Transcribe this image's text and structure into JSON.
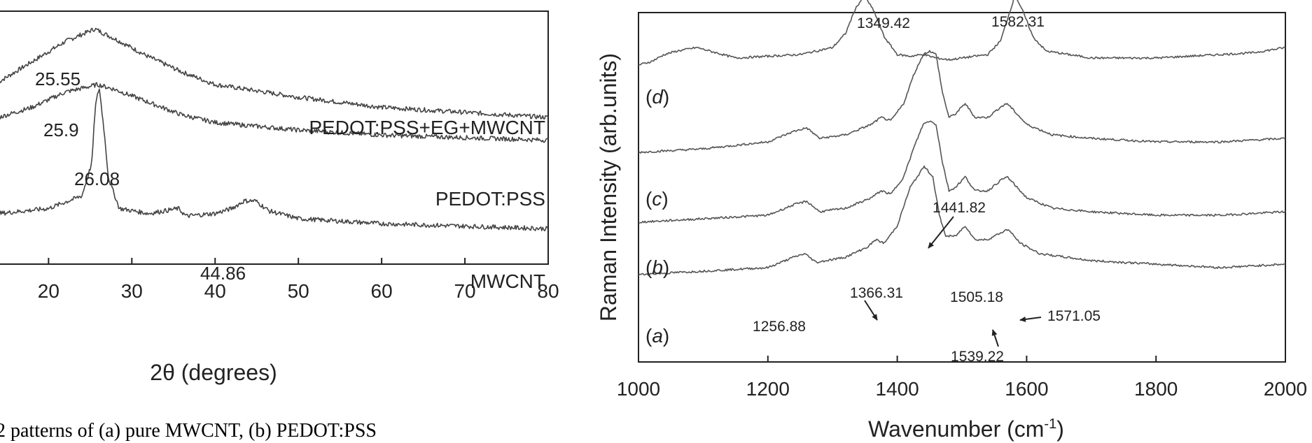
{
  "chart_data": [
    {
      "type": "line",
      "xlabel": "2θ (degrees)",
      "ylabel": "",
      "xlim": [
        14,
        80
      ],
      "x_ticks": [
        20,
        30,
        40,
        50,
        60,
        70,
        80
      ],
      "x_tick_labels": [
        "20",
        "30",
        "40",
        "50",
        "60",
        "70",
        "80"
      ],
      "grid": false,
      "series": [
        {
          "name": "PEDOT:PSS+EG+MWCNT",
          "color": "#444444",
          "x": [
            14,
            18,
            22,
            25.55,
            28,
            32,
            36,
            40,
            50,
            60,
            70,
            80
          ],
          "y": [
            0.72,
            0.8,
            0.88,
            0.93,
            0.89,
            0.82,
            0.76,
            0.71,
            0.66,
            0.62,
            0.6,
            0.58
          ],
          "peaks": [
            {
              "x": 25.55,
              "label": "25.55"
            }
          ]
        },
        {
          "name": "PEDOT:PSS",
          "color": "#444444",
          "x": [
            14,
            18,
            22,
            25.9,
            28,
            32,
            36,
            40,
            50,
            60,
            70,
            80
          ],
          "y": [
            0.58,
            0.62,
            0.68,
            0.71,
            0.69,
            0.64,
            0.59,
            0.56,
            0.53,
            0.51,
            0.5,
            0.49
          ],
          "peaks": [
            {
              "x": 25.9,
              "label": "25.9"
            }
          ]
        },
        {
          "name": "MWCNT",
          "color": "#444444",
          "x": [
            14,
            20,
            24,
            25.2,
            25.6,
            26.08,
            26.6,
            27.2,
            28.5,
            32,
            35.6,
            36.5,
            40,
            42,
            43.5,
            44.86,
            46.5,
            50,
            60,
            70,
            80
          ],
          "y": [
            0.2,
            0.22,
            0.27,
            0.4,
            0.62,
            0.7,
            0.55,
            0.34,
            0.22,
            0.2,
            0.22,
            0.19,
            0.2,
            0.22,
            0.25,
            0.25,
            0.21,
            0.18,
            0.16,
            0.15,
            0.14
          ],
          "peaks": [
            {
              "x": 26.08,
              "label": "26.08"
            },
            {
              "x": 44.86,
              "label": "44.86"
            }
          ]
        }
      ],
      "annotations": [
        "25.55",
        "25.9",
        "26.08",
        "44.86"
      ]
    },
    {
      "type": "line",
      "xlabel_base": "Wavenumber (cm",
      "xlabel_sup": "-1",
      "xlabel_end": ")",
      "ylabel": "Raman Intensity (arb.units)",
      "xlim": [
        1000,
        2000
      ],
      "x_ticks": [
        1000,
        1200,
        1400,
        1600,
        1800,
        2000
      ],
      "x_tick_labels": [
        "1000",
        "1200",
        "1400",
        "1600",
        "1800",
        "2000"
      ],
      "grid": false,
      "series": [
        {
          "letter": "d",
          "color": "#555555",
          "x": [
            1000,
            1020,
            1040,
            1060,
            1090,
            1150,
            1250,
            1300,
            1320,
            1335,
            1349.42,
            1365,
            1380,
            1400,
            1420,
            1440,
            1460,
            1480,
            1500,
            1540,
            1560,
            1570,
            1582.31,
            1595,
            1610,
            1630,
            1700,
            1800,
            1900,
            1950,
            2000
          ],
          "y": [
            0.85,
            0.86,
            0.88,
            0.89,
            0.9,
            0.87,
            0.88,
            0.9,
            0.94,
            1.01,
            1.05,
            1.0,
            0.93,
            0.88,
            0.875,
            0.88,
            0.87,
            0.865,
            0.87,
            0.88,
            0.92,
            0.98,
            1.05,
            1.0,
            0.93,
            0.89,
            0.87,
            0.87,
            0.88,
            0.885,
            0.9
          ],
          "peaks": [
            {
              "x": 1349.42,
              "label": "1349.42"
            },
            {
              "x": 1582.31,
              "label": "1582.31"
            }
          ]
        },
        {
          "letter": "c",
          "color": "#555555",
          "x": [
            1000,
            1100,
            1200,
            1240,
            1260,
            1280,
            1320,
            1360,
            1375,
            1390,
            1410,
            1425,
            1440,
            1450,
            1460,
            1470,
            1480,
            1490,
            1505,
            1520,
            1540,
            1560,
            1570,
            1580,
            1600,
            1640,
            1700,
            1800,
            1900,
            2000
          ],
          "y": [
            0.6,
            0.61,
            0.63,
            0.66,
            0.67,
            0.64,
            0.65,
            0.68,
            0.7,
            0.69,
            0.74,
            0.82,
            0.88,
            0.89,
            0.88,
            0.77,
            0.7,
            0.71,
            0.74,
            0.7,
            0.7,
            0.73,
            0.74,
            0.72,
            0.68,
            0.65,
            0.64,
            0.63,
            0.63,
            0.64
          ],
          "peaks": []
        },
        {
          "letter": "b",
          "color": "#555555",
          "x": [
            1000,
            1100,
            1200,
            1240,
            1260,
            1280,
            1320,
            1360,
            1375,
            1390,
            1410,
            1425,
            1440,
            1450,
            1460,
            1470,
            1480,
            1490,
            1505,
            1520,
            1540,
            1560,
            1570,
            1580,
            1600,
            1640,
            1700,
            1800,
            1900,
            2000
          ],
          "y": [
            0.4,
            0.41,
            0.42,
            0.45,
            0.46,
            0.43,
            0.44,
            0.47,
            0.49,
            0.48,
            0.53,
            0.61,
            0.68,
            0.69,
            0.68,
            0.57,
            0.49,
            0.5,
            0.53,
            0.49,
            0.49,
            0.52,
            0.53,
            0.51,
            0.47,
            0.44,
            0.43,
            0.42,
            0.42,
            0.43
          ],
          "peaks": []
        },
        {
          "letter": "a",
          "color": "#555555",
          "x": [
            1000,
            1100,
            1200,
            1240,
            1256.88,
            1275,
            1320,
            1355,
            1366.31,
            1380,
            1400,
            1420,
            1441.82,
            1455,
            1465,
            1475,
            1490,
            1505.18,
            1520,
            1539.22,
            1555,
            1571.05,
            1590,
            1620,
            1700,
            1800,
            1900,
            2000
          ],
          "y": [
            0.25,
            0.26,
            0.27,
            0.3,
            0.31,
            0.285,
            0.3,
            0.33,
            0.35,
            0.34,
            0.39,
            0.5,
            0.56,
            0.53,
            0.42,
            0.36,
            0.36,
            0.39,
            0.35,
            0.35,
            0.365,
            0.38,
            0.34,
            0.31,
            0.29,
            0.28,
            0.27,
            0.28
          ],
          "peaks": [
            {
              "x": 1256.88,
              "label": "1256.88"
            },
            {
              "x": 1366.31,
              "label": "1366.31"
            },
            {
              "x": 1441.82,
              "label": "1441.82"
            },
            {
              "x": 1505.18,
              "label": "1505.18"
            },
            {
              "x": 1539.22,
              "label": "1539.22"
            },
            {
              "x": 1571.05,
              "label": "1571.05"
            }
          ]
        }
      ],
      "annotations": [
        "1349.42",
        "1582.31",
        "1441.82",
        "1366.31",
        "1505.18",
        "1256.88",
        "1571.05",
        "1539.22"
      ]
    }
  ],
  "caption": "2 patterns of (a) pure MWCNT, (b) PEDOT:PSS"
}
